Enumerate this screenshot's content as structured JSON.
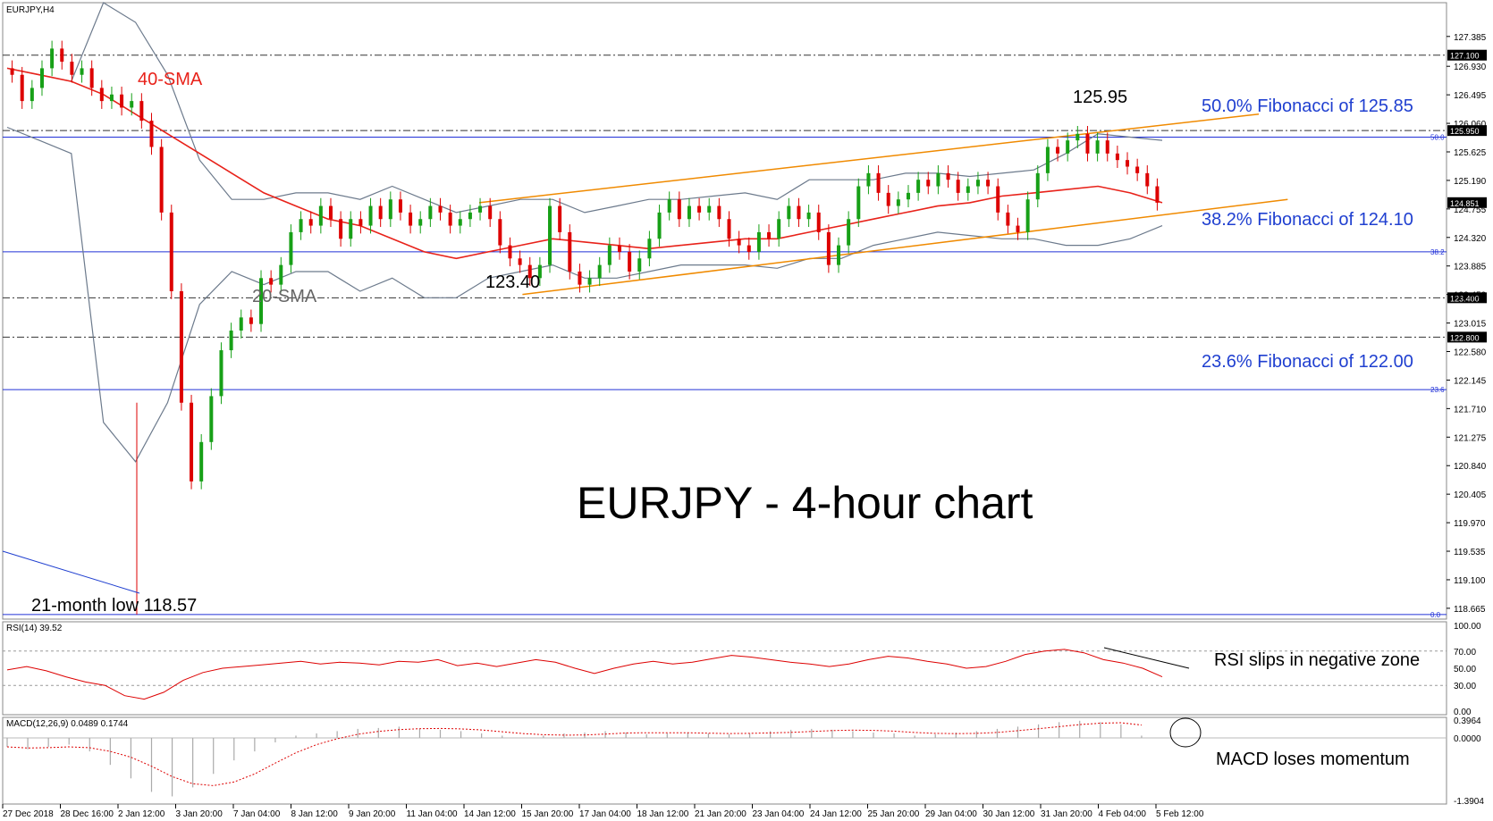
{
  "chart_data": [
    {
      "type": "candlestick",
      "symbol_label": "EURJPY,H4",
      "title": "EURJPY - 4-hour chart",
      "ylim": [
        118.5,
        127.9
      ],
      "y_ticks": [
        "127.385",
        "126.930",
        "126.495",
        "126.060",
        "125.625",
        "125.190",
        "124.755",
        "124.320",
        "123.885",
        "123.450",
        "123.015",
        "122.580",
        "122.145",
        "121.710",
        "121.275",
        "120.840",
        "120.405",
        "119.970",
        "119.535",
        "119.100",
        "118.665"
      ],
      "x_ticks": [
        "27 Dec 2018",
        "28 Dec 16:00",
        "2 Jan 12:00",
        "3 Jan 20:00",
        "7 Jan 04:00",
        "8 Jan 12:00",
        "9 Jan 20:00",
        "11 Jan 04:00",
        "14 Jan 12:00",
        "15 Jan 20:00",
        "17 Jan 04:00",
        "18 Jan 12:00",
        "21 Jan 20:00",
        "23 Jan 04:00",
        "24 Jan 12:00",
        "25 Jan 20:00",
        "29 Jan 04:00",
        "30 Jan 12:00",
        "31 Jan 20:00",
        "4 Feb 04:00",
        "5 Feb 12:00"
      ],
      "current_price": "124.851",
      "levels": [
        {
          "value": 127.1,
          "tag": "127.100",
          "style": "dashdot"
        },
        {
          "value": 125.95,
          "tag": "125.950",
          "style": "dashdot"
        },
        {
          "value": 125.85,
          "tag": "50.0",
          "style": "solid",
          "label": "50.0% Fibonacci of 125.85"
        },
        {
          "value": 124.1,
          "tag": "38.2",
          "style": "solid",
          "label": "38.2% Fibonacci of 124.10"
        },
        {
          "value": 123.4,
          "tag": "123.400",
          "style": "dashdot"
        },
        {
          "value": 122.8,
          "tag": "122.800",
          "style": "dashdot"
        },
        {
          "value": 122.0,
          "tag": "23.6",
          "style": "solid",
          "label": "23.6% Fibonacci of 122.00"
        },
        {
          "value": 118.57,
          "tag": "0.0",
          "style": "solid"
        }
      ],
      "annotations": {
        "sma40": "40-SMA",
        "sma20": "20-SMA",
        "high": "125.95",
        "low_mid": "123.40",
        "low": "21-month low 118.57"
      },
      "candles_close": [
        126.8,
        126.4,
        126.6,
        126.9,
        127.2,
        127.0,
        126.8,
        126.9,
        126.6,
        126.4,
        126.5,
        126.3,
        126.4,
        126.1,
        125.7,
        124.7,
        123.5,
        121.8,
        120.6,
        121.2,
        121.9,
        122.6,
        122.9,
        123.1,
        123.0,
        123.7,
        123.6,
        123.9,
        124.4,
        124.6,
        124.5,
        124.8,
        124.6,
        124.3,
        124.6,
        124.5,
        124.8,
        124.6,
        124.9,
        124.7,
        124.5,
        124.6,
        124.8,
        124.7,
        124.5,
        124.6,
        124.7,
        124.8,
        124.6,
        124.2,
        124.0,
        123.9,
        123.7,
        123.9,
        124.8,
        124.4,
        123.8,
        123.6,
        123.7,
        123.9,
        124.2,
        124.1,
        123.8,
        124.0,
        124.3,
        124.7,
        124.9,
        124.6,
        124.8,
        124.7,
        124.8,
        124.6,
        124.3,
        124.2,
        124.1,
        124.4,
        124.3,
        124.6,
        124.8,
        124.6,
        124.7,
        124.4,
        123.9,
        124.2,
        124.6,
        125.1,
        125.3,
        125.0,
        124.8,
        124.9,
        125.0,
        125.2,
        125.1,
        125.3,
        125.2,
        125.0,
        125.1,
        125.2,
        125.1,
        124.7,
        124.5,
        124.4,
        124.9,
        125.3,
        125.7,
        125.6,
        125.8,
        125.9,
        125.6,
        125.8,
        125.6,
        125.5,
        125.4,
        125.3,
        125.1,
        124.85
      ],
      "bands": {
        "sma40": [
          126.9,
          126.8,
          126.7,
          126.5,
          126.2,
          125.9,
          125.6,
          125.3,
          125.0,
          124.8,
          124.6,
          124.5,
          124.3,
          124.1,
          124.0,
          124.1,
          124.2,
          124.3,
          124.25,
          124.2,
          124.15,
          124.2,
          124.25,
          124.3,
          124.3,
          124.4,
          124.5,
          124.6,
          124.7,
          124.8,
          124.85,
          124.95,
          125.0,
          125.05,
          125.1,
          125.0,
          124.85
        ],
        "upper": [
          126.9,
          126.8,
          126.7,
          127.9,
          127.6,
          126.8,
          125.5,
          124.9,
          124.9,
          125.0,
          125.0,
          124.9,
          125.1,
          124.9,
          124.7,
          124.8,
          124.9,
          124.9,
          124.7,
          124.8,
          124.9,
          124.9,
          124.95,
          125.0,
          124.9,
          125.2,
          125.2,
          125.2,
          125.3,
          125.3,
          125.25,
          125.3,
          125.35,
          125.6,
          125.9,
          125.85,
          125.8
        ],
        "lower": [
          126.0,
          125.8,
          125.6,
          121.5,
          120.9,
          121.8,
          123.3,
          123.8,
          123.6,
          123.8,
          123.8,
          123.5,
          123.7,
          123.4,
          123.4,
          123.7,
          123.8,
          123.9,
          123.7,
          123.7,
          123.8,
          123.9,
          123.9,
          123.9,
          123.85,
          124.0,
          124.0,
          124.2,
          124.3,
          124.4,
          124.35,
          124.3,
          124.3,
          124.2,
          124.2,
          124.3,
          124.5
        ]
      },
      "channel": {
        "upper": [
          [
            0.33,
            124.85
          ],
          [
            0.87,
            126.2
          ]
        ],
        "lower": [
          [
            0.36,
            123.45
          ],
          [
            0.89,
            124.9
          ]
        ]
      }
    },
    {
      "type": "line",
      "label": "RSI(14) 39.52",
      "ylim": [
        0,
        100
      ],
      "y_ticks": [
        "100.00",
        "70.00",
        "50.00",
        "30.00",
        "0.00"
      ],
      "annotation": "RSI slips in negative zone",
      "values": [
        48,
        52,
        47,
        40,
        34,
        30,
        18,
        14,
        22,
        36,
        45,
        50,
        52,
        54,
        56,
        58,
        55,
        57,
        56,
        54,
        58,
        57,
        60,
        53,
        56,
        52,
        56,
        60,
        57,
        50,
        44,
        50,
        55,
        58,
        55,
        57,
        61,
        65,
        63,
        60,
        57,
        55,
        52,
        55,
        60,
        64,
        62,
        58,
        55,
        50,
        52,
        58,
        66,
        70,
        72,
        68,
        60,
        56,
        50,
        40
      ]
    },
    {
      "type": "bar",
      "label": "MACD(12,26,9) 0.0489 0.1744",
      "ylim": [
        -1.3904,
        0.3964
      ],
      "y_ticks": [
        "0.3964",
        "0.0000",
        "-1.3904"
      ],
      "annotation": "MACD loses momentum",
      "values": [
        -0.2,
        -0.25,
        -0.2,
        -0.15,
        -0.3,
        -0.6,
        -0.9,
        -1.2,
        -1.3,
        -1.1,
        -0.8,
        -0.5,
        -0.3,
        -0.1,
        0.05,
        0.1,
        0.15,
        0.2,
        0.22,
        0.25,
        0.2,
        0.18,
        0.15,
        0.1,
        0.05,
        0.0,
        0.05,
        0.1,
        0.12,
        0.15,
        0.12,
        0.08,
        0.1,
        0.12,
        0.1,
        0.08,
        0.1,
        0.15,
        0.18,
        0.2,
        0.18,
        0.15,
        0.12,
        0.1,
        0.05,
        0.08,
        0.12,
        0.15,
        0.2,
        0.25,
        0.3,
        0.35,
        0.38,
        0.35,
        0.3,
        0.05
      ]
    }
  ]
}
